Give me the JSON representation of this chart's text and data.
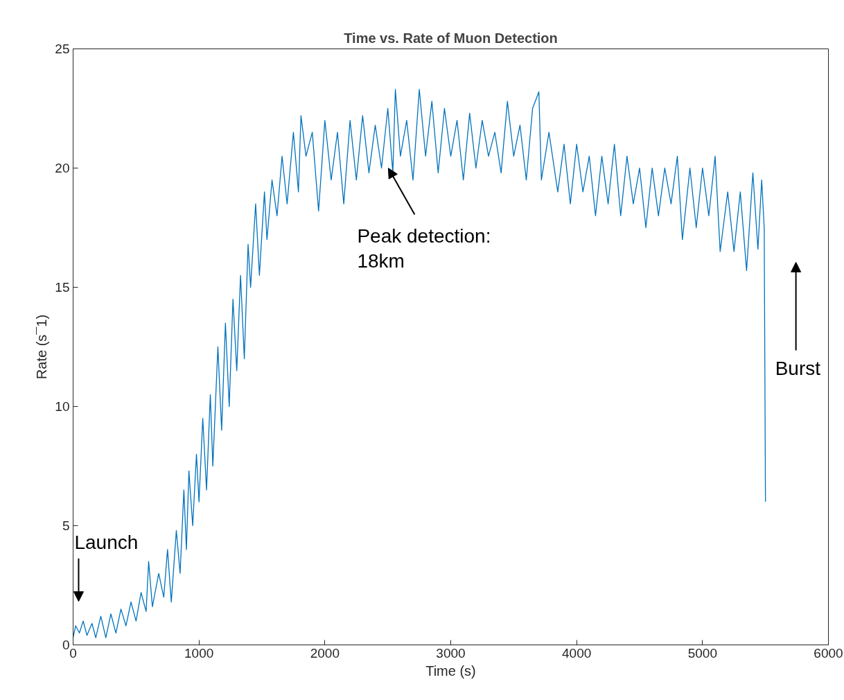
{
  "chart_data": {
    "type": "line",
    "title": "Time vs. Rate of Muon Detection",
    "xlabel": "Time (s)",
    "ylabel": "Rate (s¯1)",
    "xlim": [
      0,
      6000
    ],
    "ylim": [
      0,
      25
    ],
    "xticks": [
      0,
      1000,
      2000,
      3000,
      4000,
      5000,
      6000
    ],
    "yticks": [
      0,
      5,
      10,
      15,
      20,
      25
    ],
    "grid": false,
    "line_style": "solid",
    "marker": "none",
    "series": [
      {
        "color": "#0072bd",
        "x": [
          0,
          20,
          50,
          80,
          110,
          150,
          180,
          220,
          260,
          300,
          340,
          380,
          420,
          460,
          500,
          540,
          580,
          600,
          630,
          680,
          720,
          750,
          780,
          820,
          850,
          880,
          900,
          920,
          950,
          980,
          1000,
          1030,
          1060,
          1090,
          1110,
          1150,
          1180,
          1210,
          1240,
          1270,
          1300,
          1330,
          1360,
          1390,
          1410,
          1450,
          1480,
          1520,
          1540,
          1580,
          1620,
          1660,
          1700,
          1750,
          1790,
          1810,
          1850,
          1900,
          1950,
          2000,
          2050,
          2100,
          2150,
          2200,
          2250,
          2300,
          2350,
          2400,
          2450,
          2500,
          2540,
          2560,
          2600,
          2650,
          2700,
          2750,
          2800,
          2850,
          2900,
          2950,
          3000,
          3050,
          3100,
          3150,
          3200,
          3250,
          3300,
          3350,
          3400,
          3450,
          3500,
          3550,
          3600,
          3650,
          3700,
          3720,
          3780,
          3850,
          3900,
          3950,
          4000,
          4050,
          4100,
          4150,
          4200,
          4250,
          4300,
          4350,
          4400,
          4450,
          4500,
          4550,
          4600,
          4650,
          4700,
          4750,
          4800,
          4840,
          4900,
          4950,
          5000,
          5050,
          5100,
          5140,
          5200,
          5250,
          5300,
          5350,
          5400,
          5440,
          5470,
          5490,
          5500
        ],
        "values": [
          0.3,
          0.8,
          0.5,
          1.0,
          0.4,
          0.9,
          0.3,
          1.2,
          0.3,
          1.3,
          0.5,
          1.5,
          0.8,
          1.8,
          1.0,
          2.2,
          1.4,
          3.5,
          1.6,
          3.0,
          2.0,
          4.0,
          1.8,
          4.8,
          3.0,
          6.5,
          4.0,
          7.3,
          5.0,
          8.0,
          6.0,
          9.5,
          6.5,
          10.5,
          7.5,
          12.5,
          9.0,
          13.5,
          10.0,
          14.5,
          11.5,
          15.5,
          12.0,
          16.8,
          15.0,
          18.5,
          15.5,
          19.0,
          17.0,
          19.5,
          18.0,
          20.5,
          18.5,
          21.5,
          19.0,
          22.2,
          20.5,
          21.5,
          18.2,
          22.0,
          19.5,
          21.5,
          18.5,
          22.0,
          19.5,
          22.2,
          19.8,
          21.8,
          20.0,
          22.5,
          19.8,
          23.3,
          20.5,
          22.0,
          19.5,
          23.3,
          20.5,
          22.8,
          19.8,
          22.5,
          20.5,
          22.0,
          19.5,
          22.3,
          20.0,
          22.0,
          20.5,
          21.5,
          19.8,
          22.8,
          20.5,
          21.8,
          19.5,
          22.5,
          23.2,
          19.5,
          21.5,
          19.0,
          21.0,
          18.5,
          21.0,
          19.0,
          20.5,
          18.0,
          20.5,
          18.5,
          21.0,
          18.0,
          20.5,
          18.5,
          20.0,
          17.5,
          20.0,
          18.0,
          20.0,
          18.5,
          20.5,
          17.0,
          20.0,
          17.5,
          20.0,
          18.0,
          20.5,
          16.5,
          19.0,
          16.5,
          19.0,
          15.7,
          19.8,
          16.6,
          19.5,
          17.5,
          6.0
        ]
      }
    ],
    "annotations": [
      "Launch",
      {
        "text": "Peak detection:\n18km",
        "x": 2504,
        "y": 20.0
      },
      "Burst"
    ]
  }
}
